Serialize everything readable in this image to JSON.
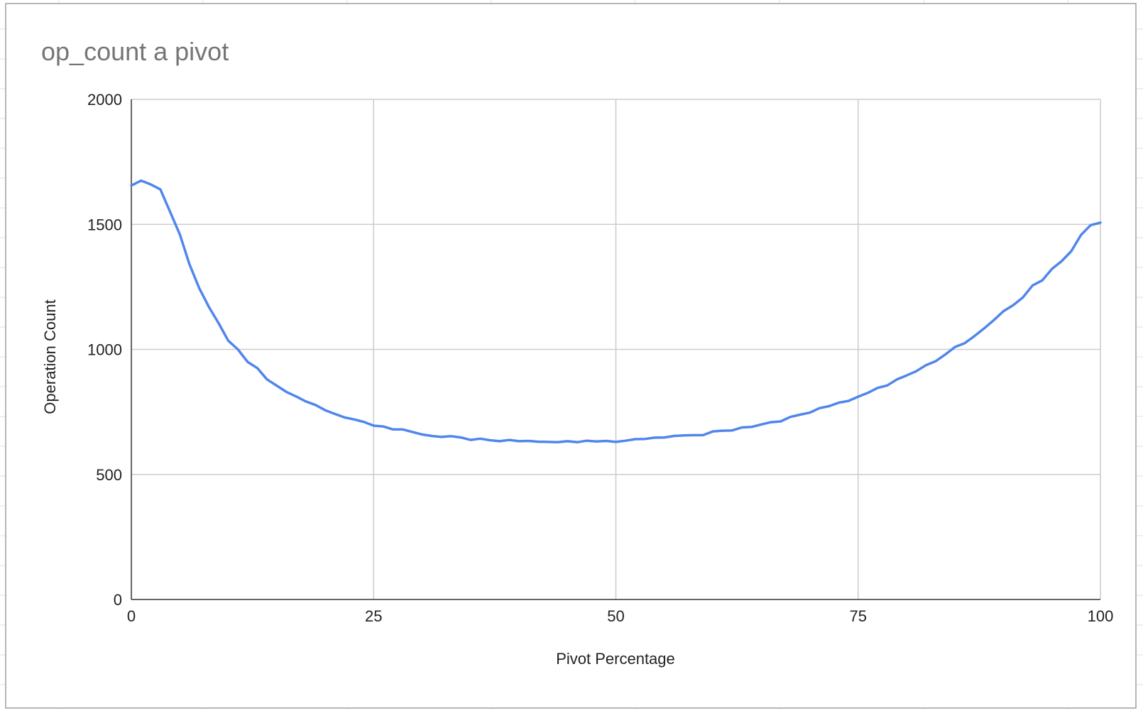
{
  "chart_data": {
    "type": "line",
    "title": "op_count a pivot",
    "xlabel": "Pivot Percentage",
    "ylabel": "Operation Count",
    "xlim": [
      0,
      100
    ],
    "ylim": [
      0,
      2000
    ],
    "xticks": [
      0,
      25,
      50,
      75,
      100
    ],
    "yticks": [
      0,
      500,
      1000,
      1500,
      2000
    ],
    "grid": true,
    "legend": "none",
    "series": [
      {
        "color": "#5086ec",
        "x": [
          0,
          1,
          2,
          3,
          4,
          5,
          6,
          7,
          8,
          9,
          10,
          11,
          12,
          13,
          14,
          15,
          16,
          17,
          18,
          19,
          20,
          21,
          22,
          23,
          24,
          25,
          26,
          27,
          28,
          29,
          30,
          31,
          32,
          33,
          34,
          35,
          36,
          37,
          38,
          39,
          40,
          41,
          42,
          43,
          44,
          45,
          46,
          47,
          48,
          49,
          50,
          51,
          52,
          53,
          54,
          55,
          56,
          57,
          58,
          59,
          60,
          61,
          62,
          63,
          64,
          65,
          66,
          67,
          68,
          69,
          70,
          71,
          72,
          73,
          74,
          75,
          76,
          77,
          78,
          79,
          80,
          81,
          82,
          83,
          84,
          85,
          86,
          87,
          88,
          89,
          90,
          91,
          92,
          93,
          94,
          95,
          96,
          97,
          98,
          99,
          100
        ],
        "y": [
          1655,
          1675,
          1660,
          1640,
          1550,
          1460,
          1340,
          1245,
          1170,
          1105,
          1035,
          1000,
          950,
          925,
          880,
          855,
          830,
          812,
          792,
          778,
          757,
          742,
          728,
          720,
          710,
          695,
          692,
          680,
          680,
          670,
          660,
          654,
          650,
          653,
          648,
          638,
          643,
          637,
          633,
          638,
          633,
          634,
          631,
          630,
          629,
          633,
          629,
          635,
          632,
          634,
          630,
          635,
          641,
          642,
          647,
          648,
          654,
          656,
          657,
          657,
          672,
          675,
          676,
          688,
          690,
          700,
          709,
          712,
          730,
          739,
          747,
          765,
          773,
          787,
          794,
          811,
          826,
          846,
          856,
          880,
          896,
          913,
          937,
          953,
          980,
          1010,
          1025,
          1053,
          1084,
          1117,
          1153,
          1177,
          1208,
          1256,
          1276,
          1322,
          1353,
          1393,
          1458,
          1497,
          1507
        ]
      }
    ]
  }
}
